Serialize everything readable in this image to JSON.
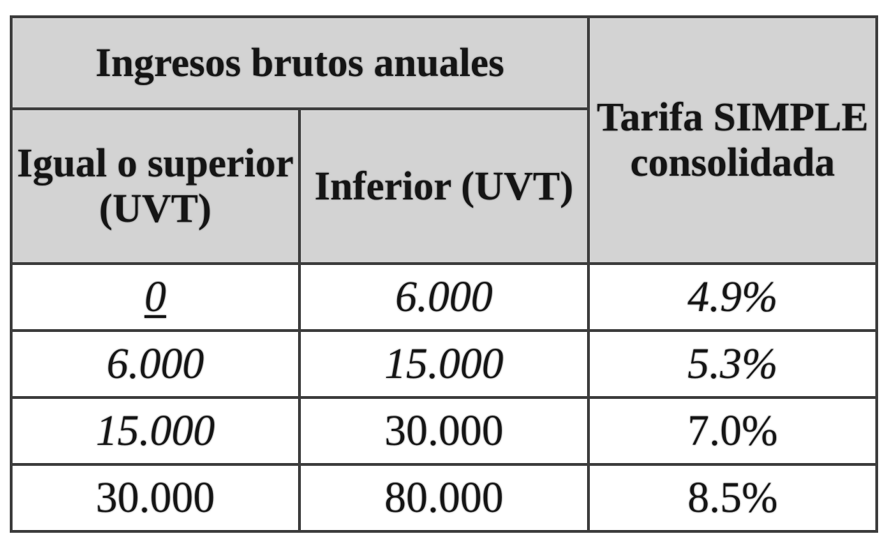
{
  "table": {
    "group_header": "Ingresos brutos anuales",
    "col_lower": "Igual o superior (UVT)",
    "col_upper": "Inferior (UVT)",
    "col_rate": "Tarifa SIMPLE consolidada",
    "rows": [
      {
        "lower": "0",
        "upper": "6.000",
        "rate": "4.9%"
      },
      {
        "lower": "6.000",
        "upper": "15.000",
        "rate": "5.3%"
      },
      {
        "lower": "15.000",
        "upper": "30.000",
        "rate": "7.0%"
      },
      {
        "lower": "30.000",
        "upper": "80.000",
        "rate": "8.5%"
      }
    ]
  }
}
